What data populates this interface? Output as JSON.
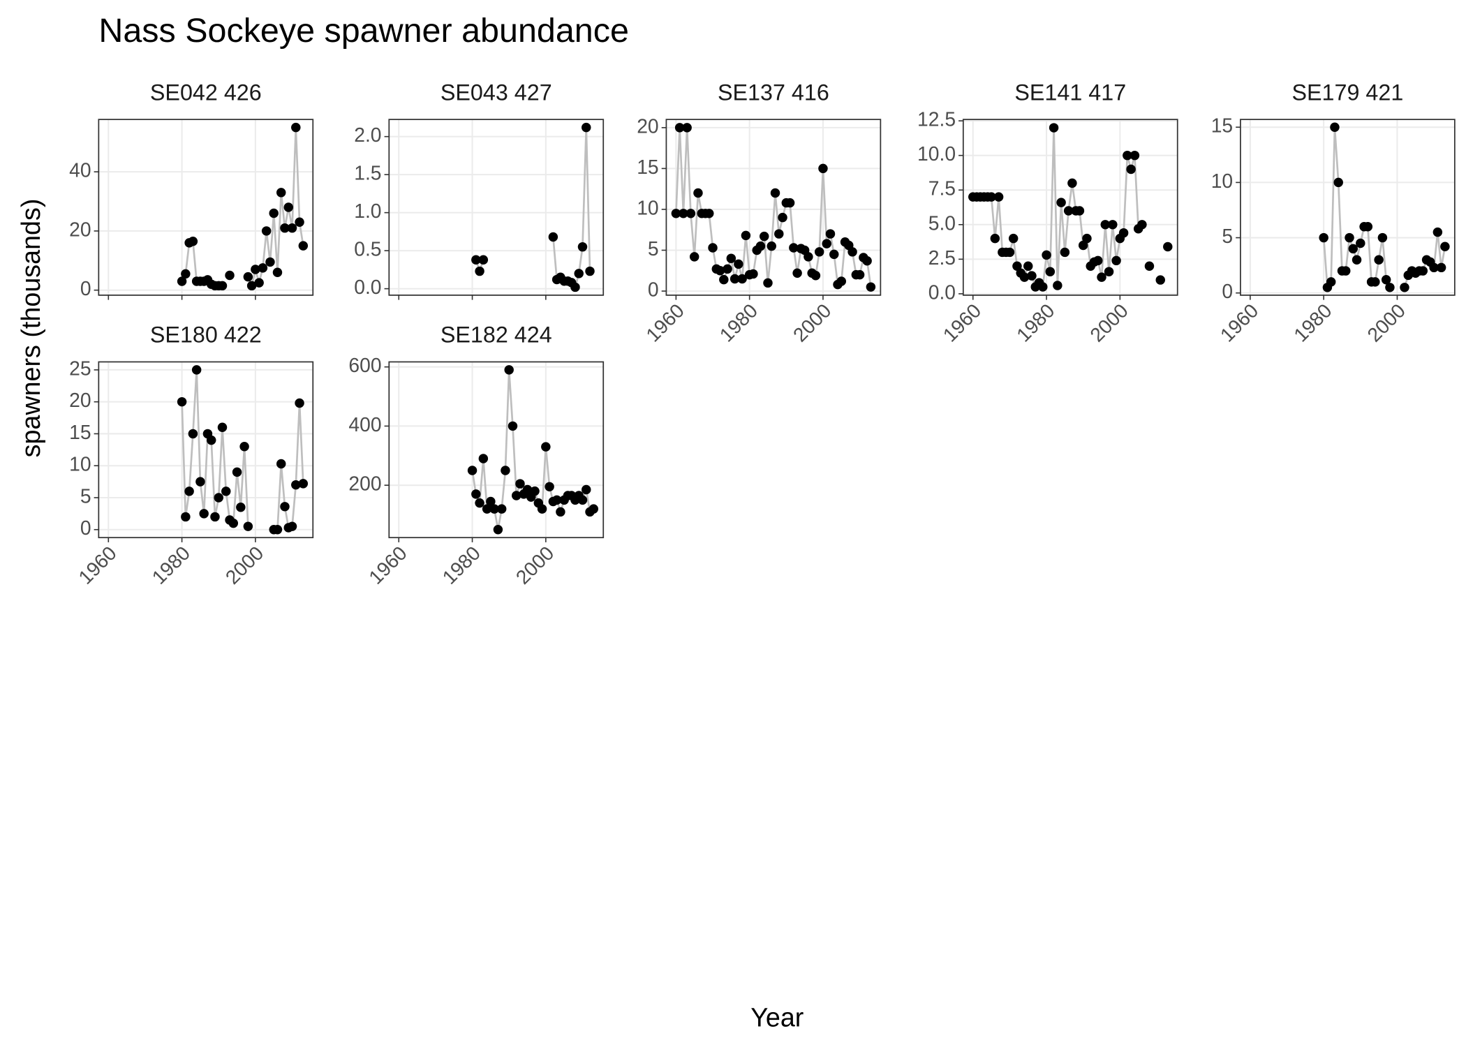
{
  "title": "Nass Sockeye spawner abundance",
  "xlabel": "Year",
  "ylabel": "spawners (thousands)",
  "chart_data": [
    {
      "type": "line",
      "title": "SE042 426",
      "color": "#000000",
      "line_color": "#bebebe",
      "grid": true,
      "x": [
        1980,
        1981,
        1982,
        1983,
        1984,
        1985,
        1986,
        1987,
        1988,
        1989,
        1990,
        1991,
        1992,
        1993,
        1994,
        1995,
        1996,
        1997,
        1998,
        1999,
        2000,
        2001,
        2002,
        2003,
        2004,
        2005,
        2006,
        2007,
        2008,
        2009,
        2010,
        2011,
        2012,
        2013
      ],
      "values": [
        3,
        5.5,
        16,
        16.5,
        3,
        3,
        3,
        3.5,
        2,
        1.5,
        1.5,
        1.5,
        null,
        5,
        null,
        null,
        null,
        null,
        4.5,
        1.5,
        7,
        2.5,
        7.5,
        20,
        9.5,
        26,
        6,
        33,
        21,
        28,
        21,
        55,
        23,
        15
      ],
      "xlim": [
        1957.35,
        2015.65
      ],
      "ylim": [
        -1.7,
        57.7
      ],
      "xticks": [
        1960,
        1980,
        2000
      ],
      "yticks": [
        0,
        20,
        40
      ]
    },
    {
      "type": "line",
      "title": "SE043 427",
      "color": "#000000",
      "line_color": "#bebebe",
      "grid": true,
      "x": [
        1981,
        1982,
        1983,
        1984,
        1985,
        1986,
        1987,
        1988,
        1989,
        1990,
        1991,
        1992,
        1993,
        1994,
        1995,
        1996,
        1997,
        1998,
        1999,
        2000,
        2001,
        2002,
        2003,
        2004,
        2005,
        2006,
        2007,
        2008,
        2009,
        2010,
        2011,
        2012
      ],
      "values": [
        0.38,
        0.23,
        0.38,
        null,
        null,
        null,
        null,
        null,
        null,
        null,
        null,
        null,
        null,
        null,
        null,
        null,
        null,
        null,
        null,
        null,
        null,
        0.68,
        0.12,
        0.15,
        0.1,
        0.1,
        0.08,
        0.02,
        0.2,
        0.55,
        2.12,
        0.23
      ],
      "xlim": [
        1957.35,
        2015.65
      ],
      "ylim": [
        -0.085,
        2.225
      ],
      "xticks": [
        1960,
        1980,
        2000
      ],
      "yticks": [
        {
          "value": 0,
          "label": "0.0"
        },
        0.5,
        {
          "value": 1,
          "label": "1.0"
        },
        1.5,
        {
          "value": 2,
          "label": "2.0"
        }
      ]
    },
    {
      "type": "line",
      "title": "SE137 416",
      "color": "#000000",
      "line_color": "#bebebe",
      "grid": true,
      "x": [
        1960,
        1961,
        1962,
        1963,
        1964,
        1965,
        1966,
        1967,
        1968,
        1969,
        1970,
        1971,
        1972,
        1973,
        1974,
        1975,
        1976,
        1977,
        1978,
        1979,
        1980,
        1981,
        1982,
        1983,
        1984,
        1985,
        1986,
        1987,
        1988,
        1989,
        1990,
        1991,
        1992,
        1993,
        1994,
        1995,
        1996,
        1997,
        1998,
        1999,
        2000,
        2001,
        2002,
        2003,
        2004,
        2005,
        2006,
        2007,
        2008,
        2009,
        2010,
        2011,
        2012,
        2013
      ],
      "values": [
        9.5,
        20,
        9.5,
        20,
        9.5,
        4.2,
        12,
        9.5,
        9.5,
        9.5,
        5.3,
        2.7,
        2.5,
        1.4,
        2.7,
        4,
        1.5,
        3.3,
        1.5,
        6.8,
        2,
        2.1,
        5,
        5.5,
        6.7,
        1,
        5.5,
        12,
        7,
        9,
        10.8,
        10.8,
        5.3,
        2.2,
        5.2,
        5,
        4.2,
        2.2,
        1.9,
        4.8,
        15,
        5.8,
        7,
        4.5,
        0.8,
        1.2,
        6,
        5.6,
        4.8,
        2,
        2,
        4.1,
        3.7,
        0.5
      ],
      "xlim": [
        1957.35,
        2015.65
      ],
      "ylim": [
        -0.5,
        21
      ],
      "xticks": [
        1960,
        1980,
        2000
      ],
      "yticks": [
        0,
        5,
        10,
        15,
        20
      ]
    },
    {
      "type": "line",
      "title": "SE141 417",
      "color": "#000000",
      "line_color": "#bebebe",
      "grid": true,
      "x": [
        1960,
        1961,
        1962,
        1963,
        1964,
        1965,
        1966,
        1967,
        1968,
        1969,
        1970,
        1971,
        1972,
        1973,
        1974,
        1975,
        1976,
        1977,
        1978,
        1979,
        1980,
        1981,
        1982,
        1983,
        1984,
        1985,
        1986,
        1987,
        1988,
        1989,
        1990,
        1991,
        1992,
        1993,
        1994,
        1995,
        1996,
        1997,
        1998,
        1999,
        2000,
        2001,
        2002,
        2003,
        2004,
        2005,
        2006,
        2007,
        2008,
        2009,
        2010,
        2011,
        2012,
        2013
      ],
      "values": [
        7,
        7,
        7,
        7,
        7,
        7,
        4,
        7,
        3,
        3,
        3,
        4,
        2,
        1.5,
        1.2,
        2,
        1.3,
        0.5,
        0.8,
        0.5,
        2.8,
        1.6,
        12,
        0.6,
        6.6,
        3,
        6,
        8,
        6,
        6,
        3.5,
        4,
        2,
        2.3,
        2.4,
        1.2,
        5,
        1.6,
        5,
        2.4,
        4,
        4.4,
        10,
        9,
        10,
        4.7,
        5,
        null,
        2,
        null,
        null,
        1,
        null,
        3.4
      ],
      "xlim": [
        1957.35,
        2015.65
      ],
      "ylim": [
        -0.1,
        12.6
      ],
      "xticks": [
        1960,
        1980,
        2000
      ],
      "yticks": [
        {
          "value": 0,
          "label": "0.0"
        },
        2.5,
        {
          "value": 5,
          "label": "5.0"
        },
        7.5,
        {
          "value": 10,
          "label": "10.0"
        },
        12.5
      ]
    },
    {
      "type": "line",
      "title": "SE179 421",
      "color": "#000000",
      "line_color": "#bebebe",
      "grid": true,
      "x": [
        1980,
        1981,
        1982,
        1983,
        1984,
        1985,
        1986,
        1987,
        1988,
        1989,
        1990,
        1991,
        1992,
        1993,
        1994,
        1995,
        1996,
        1997,
        1998,
        1999,
        2000,
        2001,
        2002,
        2003,
        2004,
        2005,
        2006,
        2007,
        2008,
        2009,
        2010,
        2011,
        2012,
        2013
      ],
      "values": [
        5,
        0.5,
        1,
        15,
        10,
        2,
        2,
        5,
        4,
        3,
        4.5,
        6,
        6,
        1,
        1,
        3,
        5,
        1.2,
        0.5,
        null,
        null,
        null,
        0.5,
        1.6,
        2,
        1.8,
        2,
        2,
        3,
        2.8,
        2.3,
        5.5,
        2.3,
        4.2
      ],
      "xlim": [
        1957.35,
        2015.65
      ],
      "ylim": [
        -0.2,
        15.7
      ],
      "xticks": [
        1960,
        1980,
        2000
      ],
      "yticks": [
        0,
        5,
        10,
        15
      ]
    },
    {
      "type": "line",
      "title": "SE180 422",
      "color": "#000000",
      "line_color": "#bebebe",
      "grid": true,
      "x": [
        1980,
        1981,
        1982,
        1983,
        1984,
        1985,
        1986,
        1987,
        1988,
        1989,
        1990,
        1991,
        1992,
        1993,
        1994,
        1995,
        1996,
        1997,
        1998,
        1999,
        2000,
        2001,
        2002,
        2003,
        2004,
        2005,
        2006,
        2007,
        2008,
        2009,
        2010,
        2011,
        2012,
        2013
      ],
      "values": [
        20,
        2,
        6,
        15,
        25,
        7.5,
        2.5,
        15,
        14,
        2,
        5,
        16,
        6,
        1.5,
        1,
        9,
        3.5,
        13,
        0.5,
        null,
        null,
        null,
        null,
        null,
        null,
        0,
        0,
        10.3,
        3.6,
        0.3,
        0.5,
        7,
        19.8,
        7.2
      ],
      "xlim": [
        1957.35,
        2015.65
      ],
      "ylim": [
        -1.25,
        26.25
      ],
      "xticks": [
        1960,
        1980,
        2000
      ],
      "yticks": [
        0,
        5,
        10,
        15,
        20,
        25
      ]
    },
    {
      "type": "line",
      "title": "SE182 424",
      "color": "#000000",
      "line_color": "#bebebe",
      "grid": true,
      "x": [
        1980,
        1981,
        1982,
        1983,
        1984,
        1985,
        1986,
        1987,
        1988,
        1989,
        1990,
        1991,
        1992,
        1993,
        1994,
        1995,
        1996,
        1997,
        1998,
        1999,
        2000,
        2001,
        2002,
        2003,
        2004,
        2005,
        2006,
        2007,
        2008,
        2009,
        2010,
        2011,
        2012,
        2013
      ],
      "values": [
        250,
        170,
        140,
        290,
        120,
        145,
        120,
        50,
        120,
        250,
        590,
        400,
        165,
        205,
        170,
        185,
        160,
        180,
        140,
        120,
        330,
        195,
        145,
        150,
        110,
        150,
        165,
        165,
        150,
        165,
        150,
        185,
        110,
        120
      ],
      "xlim": [
        1957.35,
        2015.65
      ],
      "ylim": [
        23,
        617
      ],
      "xticks": [
        1960,
        1980,
        2000
      ],
      "yticks": [
        200,
        400,
        600
      ]
    }
  ]
}
